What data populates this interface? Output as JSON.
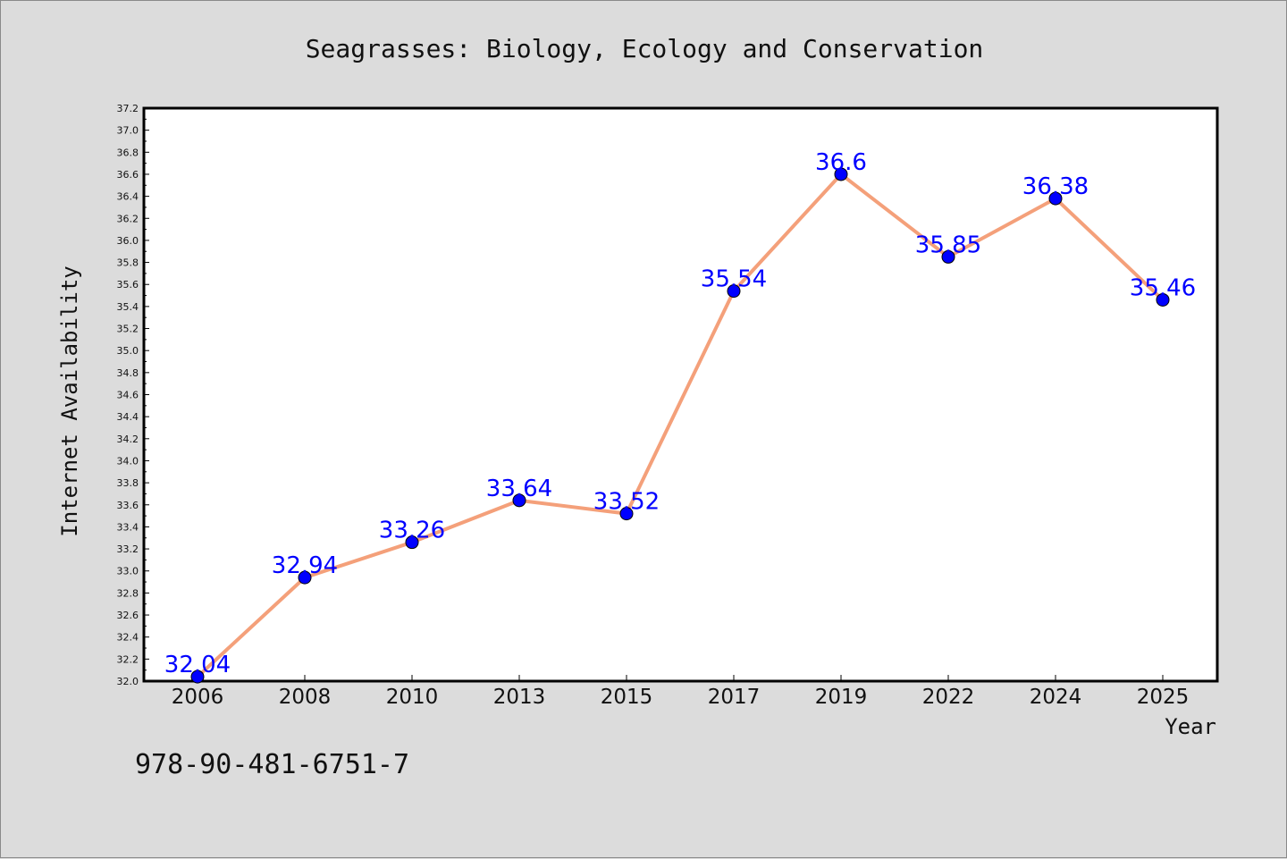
{
  "chart_data": {
    "type": "line",
    "title": "Seagrasses: Biology, Ecology and Conservation",
    "xlabel": "Year",
    "ylabel": "Internet Availability",
    "categories": [
      "2006",
      "2008",
      "2010",
      "2013",
      "2015",
      "2017",
      "2019",
      "2022",
      "2024",
      "2025"
    ],
    "values": [
      32.04,
      32.94,
      33.26,
      33.64,
      33.52,
      35.54,
      36.6,
      35.85,
      36.38,
      35.46
    ],
    "data_labels": [
      "32.04",
      "32.94",
      "33.26",
      "33.64",
      "33.52",
      "35.54",
      "36.6",
      "35.85",
      "36.38",
      "35.46"
    ],
    "ylim": [
      32.0,
      37.2
    ],
    "yticks": [
      "32.0",
      "32.2",
      "32.4",
      "32.6",
      "32.8",
      "33.0",
      "33.2",
      "33.4",
      "33.6",
      "33.8",
      "34.0",
      "34.2",
      "34.4",
      "34.6",
      "34.8",
      "35.0",
      "35.2",
      "35.4",
      "35.6",
      "35.8",
      "36.0",
      "36.2",
      "36.4",
      "36.6",
      "36.8",
      "37.0",
      "37.2"
    ],
    "grid": false,
    "line_color": "#f4a07a",
    "marker_color": "#0000ff",
    "label_color": "#0000ff"
  },
  "footer": "978-90-481-6751-7"
}
